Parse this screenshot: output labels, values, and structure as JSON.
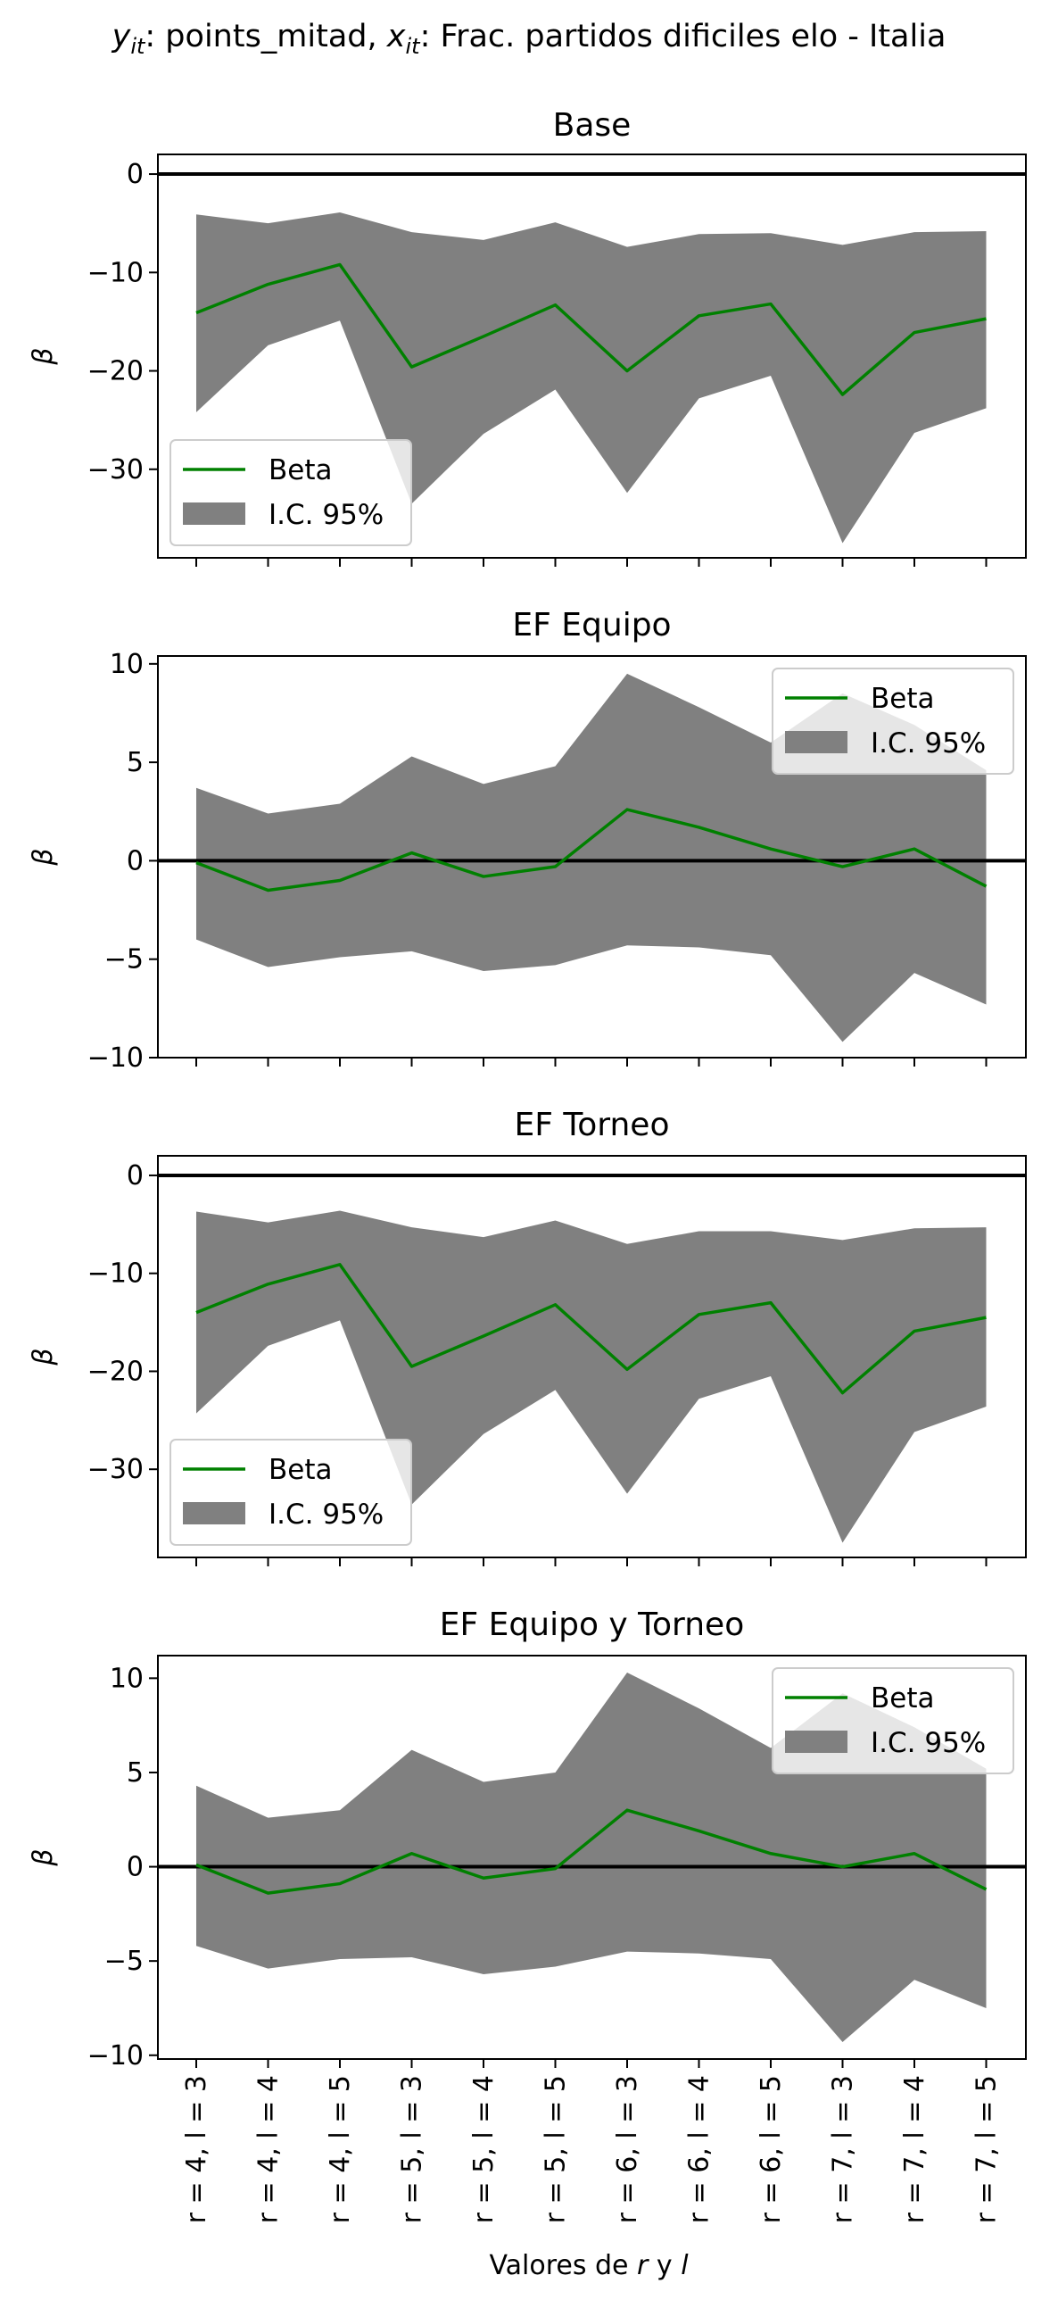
{
  "figure": {
    "suptitle_y_sym": "y",
    "suptitle_y_sub": "it",
    "suptitle_y_text": ": points_mitad, ",
    "suptitle_x_sym": "x",
    "suptitle_x_sub": "it",
    "suptitle_x_text": ": Frac. partidos dificiles elo - Italia",
    "xlabel_pre": "Valores de ",
    "xlabel_r": "r",
    "xlabel_mid": " y ",
    "xlabel_l": "l"
  },
  "colors": {
    "beta": "#008000",
    "ci": "#808080",
    "zero": "#000000"
  },
  "chart_data": [
    {
      "type": "line",
      "title": "Base",
      "ylabel": "β",
      "ylim": [
        -39,
        2
      ],
      "yticks": [
        0,
        -10,
        -20,
        -30
      ],
      "legend": "lower-left",
      "categories": [
        "r = 4, l = 3",
        "r = 4, l = 4",
        "r = 4, l = 5",
        "r = 5, l = 3",
        "r = 5, l = 4",
        "r = 5, l = 5",
        "r = 6, l = 3",
        "r = 6, l = 4",
        "r = 6, l = 5",
        "r = 7, l = 3",
        "r = 7, l = 4",
        "r = 7, l = 5"
      ],
      "series": [
        {
          "name": "Beta",
          "values": [
            -14.1,
            -11.2,
            -9.2,
            -19.6,
            -16.5,
            -13.3,
            -20.0,
            -14.4,
            -13.2,
            -22.4,
            -16.1,
            -14.7
          ]
        },
        {
          "name": "I.C. 95%",
          "lower": [
            -24.2,
            -17.4,
            -14.9,
            -33.5,
            -26.4,
            -21.9,
            -32.4,
            -22.8,
            -20.5,
            -37.5,
            -26.3,
            -23.8
          ],
          "upper": [
            -4.1,
            -5.0,
            -3.9,
            -5.9,
            -6.7,
            -4.9,
            -7.4,
            -6.1,
            -6.0,
            -7.2,
            -5.9,
            -5.8
          ]
        }
      ]
    },
    {
      "type": "line",
      "title": "EF Equipo",
      "ylabel": "β",
      "ylim": [
        -10,
        10.4
      ],
      "yticks": [
        10,
        5,
        0,
        -5,
        -10
      ],
      "legend": "upper-right",
      "categories": [
        "r = 4, l = 3",
        "r = 4, l = 4",
        "r = 4, l = 5",
        "r = 5, l = 3",
        "r = 5, l = 4",
        "r = 5, l = 5",
        "r = 6, l = 3",
        "r = 6, l = 4",
        "r = 6, l = 5",
        "r = 7, l = 3",
        "r = 7, l = 4",
        "r = 7, l = 5"
      ],
      "series": [
        {
          "name": "Beta",
          "values": [
            -0.1,
            -1.5,
            -1.0,
            0.4,
            -0.8,
            -0.3,
            2.6,
            1.7,
            0.6,
            -0.3,
            0.6,
            -1.3
          ]
        },
        {
          "name": "I.C. 95%",
          "lower": [
            -4.0,
            -5.4,
            -4.9,
            -4.6,
            -5.6,
            -5.3,
            -4.3,
            -4.4,
            -4.8,
            -9.2,
            -5.7,
            -7.3
          ],
          "upper": [
            3.7,
            2.4,
            2.9,
            5.3,
            3.9,
            4.8,
            9.5,
            7.8,
            6.0,
            8.5,
            6.9,
            4.6
          ]
        }
      ]
    },
    {
      "type": "line",
      "title": "EF Torneo",
      "ylabel": "β",
      "ylim": [
        -39,
        2
      ],
      "yticks": [
        0,
        -10,
        -20,
        -30
      ],
      "legend": "lower-left",
      "categories": [
        "r = 4, l = 3",
        "r = 4, l = 4",
        "r = 4, l = 5",
        "r = 5, l = 3",
        "r = 5, l = 4",
        "r = 5, l = 5",
        "r = 6, l = 3",
        "r = 6, l = 4",
        "r = 6, l = 5",
        "r = 7, l = 3",
        "r = 7, l = 4",
        "r = 7, l = 5"
      ],
      "series": [
        {
          "name": "Beta",
          "values": [
            -14.0,
            -11.1,
            -9.1,
            -19.5,
            -16.4,
            -13.2,
            -19.8,
            -14.2,
            -13.0,
            -22.2,
            -15.9,
            -14.5
          ]
        },
        {
          "name": "I.C. 95%",
          "lower": [
            -24.3,
            -17.4,
            -14.8,
            -33.6,
            -26.4,
            -21.9,
            -32.5,
            -22.8,
            -20.5,
            -37.5,
            -26.2,
            -23.6
          ],
          "upper": [
            -3.7,
            -4.8,
            -3.6,
            -5.3,
            -6.3,
            -4.6,
            -7.0,
            -5.7,
            -5.7,
            -6.6,
            -5.4,
            -5.3
          ]
        }
      ]
    },
    {
      "type": "line",
      "title": "EF Equipo y Torneo",
      "ylabel": "β",
      "ylim": [
        -10.2,
        11.2
      ],
      "yticks": [
        10,
        5,
        0,
        -5,
        -10
      ],
      "legend": "upper-right",
      "categories": [
        "r = 4, l = 3",
        "r = 4, l = 4",
        "r = 4, l = 5",
        "r = 5, l = 3",
        "r = 5, l = 4",
        "r = 5, l = 5",
        "r = 6, l = 3",
        "r = 6, l = 4",
        "r = 6, l = 5",
        "r = 7, l = 3",
        "r = 7, l = 4",
        "r = 7, l = 5"
      ],
      "series": [
        {
          "name": "Beta",
          "values": [
            0.1,
            -1.4,
            -0.9,
            0.7,
            -0.6,
            -0.1,
            3.0,
            1.9,
            0.7,
            0.0,
            0.7,
            -1.2
          ]
        },
        {
          "name": "I.C. 95%",
          "lower": [
            -4.2,
            -5.4,
            -4.9,
            -4.8,
            -5.7,
            -5.3,
            -4.5,
            -4.6,
            -4.9,
            -9.3,
            -6.0,
            -7.5
          ],
          "upper": [
            4.3,
            2.6,
            3.0,
            6.2,
            4.5,
            5.0,
            10.3,
            8.4,
            6.3,
            9.2,
            7.4,
            5.2
          ]
        }
      ]
    }
  ]
}
